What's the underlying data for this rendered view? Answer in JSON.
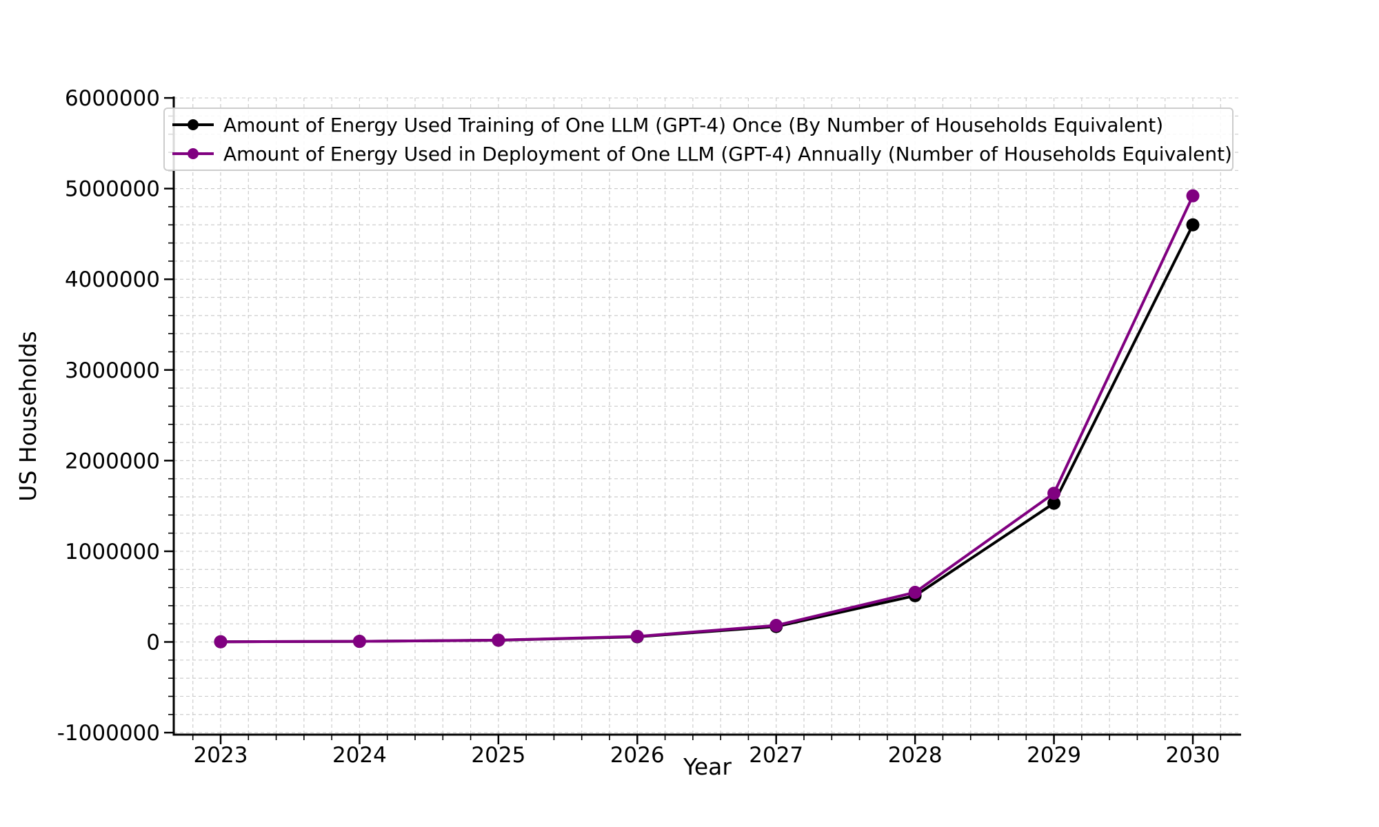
{
  "chart_data": {
    "type": "line",
    "xlabel": "Year",
    "ylabel": "US Households",
    "x": [
      2023,
      2024,
      2025,
      2026,
      2027,
      2028,
      2029,
      2030
    ],
    "xtick_labels": [
      "2023",
      "2024",
      "2025",
      "2026",
      "2027",
      "2028",
      "2029",
      "2030"
    ],
    "ytick_values": [
      -1000000,
      0,
      1000000,
      2000000,
      3000000,
      4000000,
      5000000,
      6000000
    ],
    "ytick_labels": [
      "-1000000",
      "0",
      "1000000",
      "2000000",
      "3000000",
      "4000000",
      "5000000",
      "6000000"
    ],
    "xlim": [
      2022.66,
      2030.35
    ],
    "ylim": [
      -1000000,
      6000000
    ],
    "series": [
      {
        "name": "Amount of Energy Used Training of One LLM (GPT-4) Once (By Number of Households Equivalent)",
        "color": "#000000",
        "marker": "circle",
        "values": [
          2100,
          6300,
          19000,
          57000,
          170000,
          510000,
          1530000,
          4600000
        ]
      },
      {
        "name": "Amount of Energy Used in Deployment of One LLM (GPT-4) Annually (Number of Households Equivalent)",
        "color": "#800080",
        "marker": "circle",
        "values": [
          2300,
          6900,
          20000,
          61000,
          182000,
          547000,
          1640000,
          4920000
        ]
      }
    ],
    "grid": {
      "visible": true,
      "which": "major+minor",
      "linestyle": "dashed",
      "color": "#cccccc"
    },
    "legend": {
      "position": "upper-left-inside"
    }
  },
  "colors": {
    "background": "#ffffff",
    "spine": "#000000",
    "grid": "#cccccc",
    "tick": "#000000",
    "legend_border": "#cccccc",
    "legend_background": "#ffffff"
  }
}
